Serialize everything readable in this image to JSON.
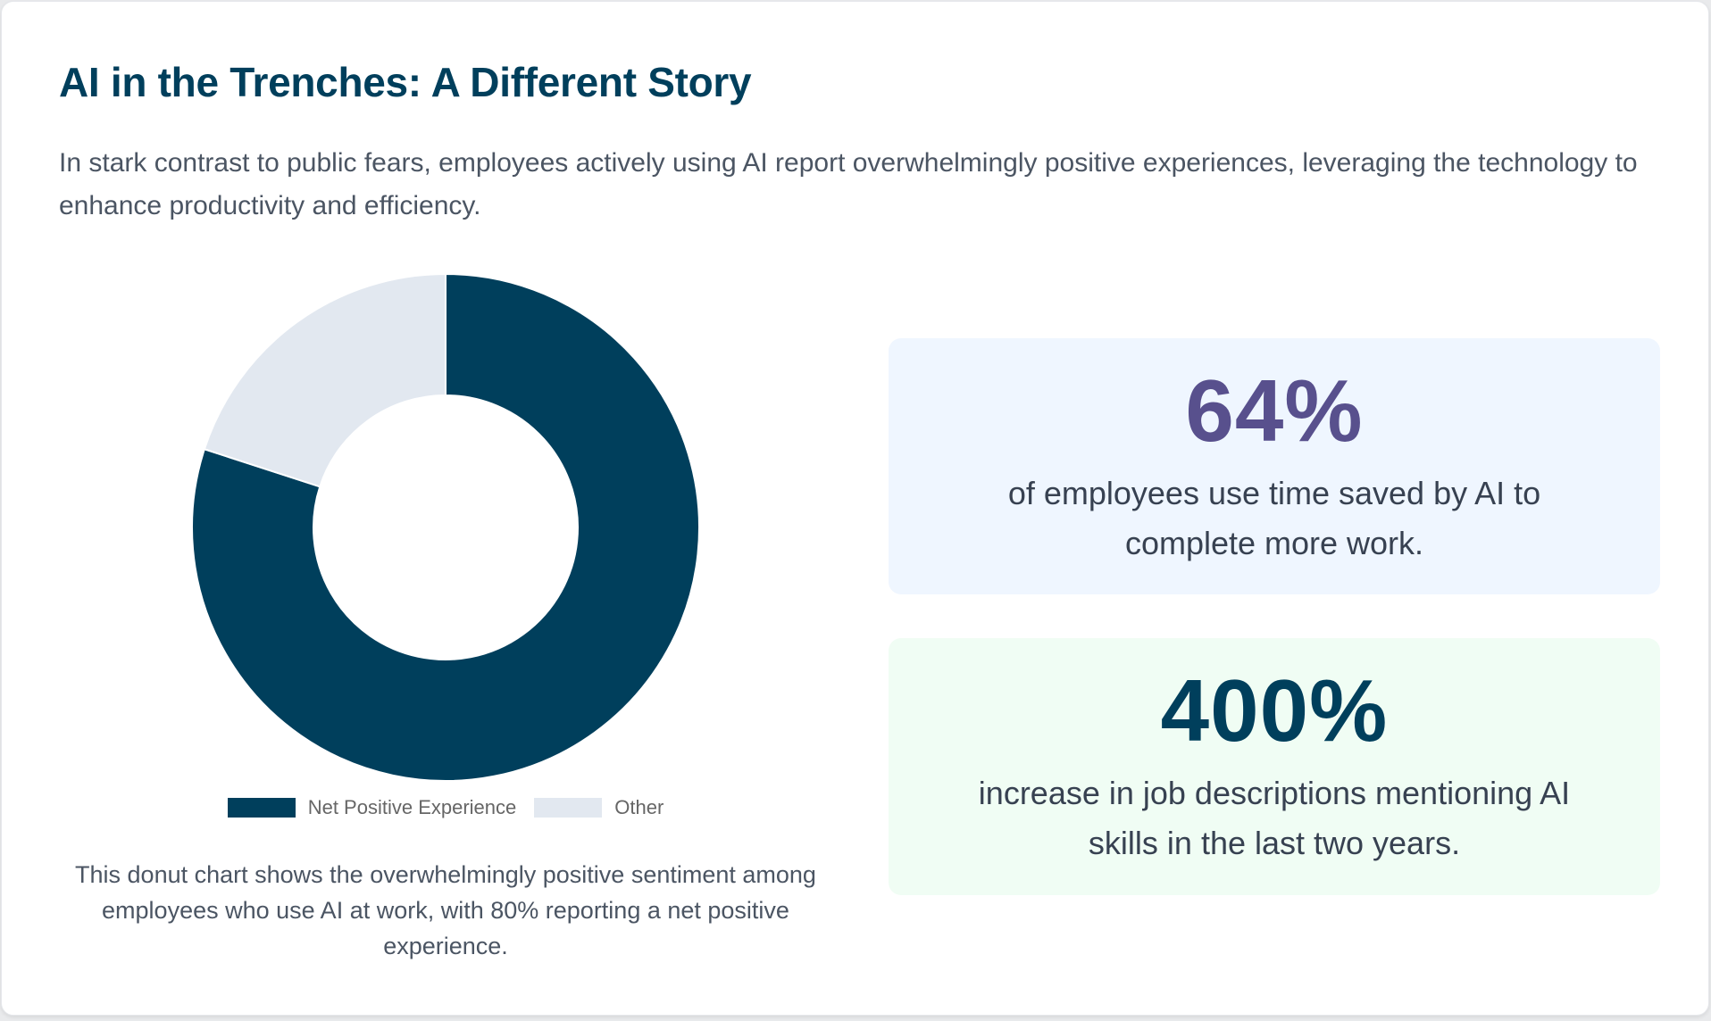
{
  "header": {
    "title": "AI in the Trenches: A Different Story",
    "intro": "In stark contrast to public fears, employees actively using AI report overwhelmingly positive experiences, leveraging the technology to enhance productivity and efficiency."
  },
  "chart": {
    "legend": [
      {
        "label": "Net Positive Experience",
        "color": "#003f5c"
      },
      {
        "label": "Other",
        "color": "#e2e8f0"
      }
    ],
    "caption": "This donut chart shows the overwhelmingly positive sentiment among employees who use AI at work, with 80% reporting a net positive experience."
  },
  "stats": [
    {
      "value": "64%",
      "description": "of employees use time saved by AI to complete more work.",
      "value_color": "#58508d",
      "background": "#eff6ff"
    },
    {
      "value": "400%",
      "description": "increase in job descriptions mentioning AI skills in the last two years.",
      "value_color": "#003f5c",
      "background": "#f0fdf4"
    }
  ],
  "colors": {
    "primary": "#003f5c",
    "accent_purple": "#58508d",
    "muted": "#e2e8f0",
    "text": "#4b5563"
  },
  "chart_data": {
    "type": "pie",
    "variant": "donut",
    "title": "",
    "categories": [
      "Net Positive Experience",
      "Other"
    ],
    "values": [
      80,
      20
    ],
    "unit": "%",
    "colors": [
      "#003f5c",
      "#e2e8f0"
    ],
    "legend_position": "bottom",
    "start_angle_deg": 0,
    "direction": "clockwise",
    "cutout_ratio": 0.52,
    "annotation": "80% reporting a net positive experience"
  }
}
